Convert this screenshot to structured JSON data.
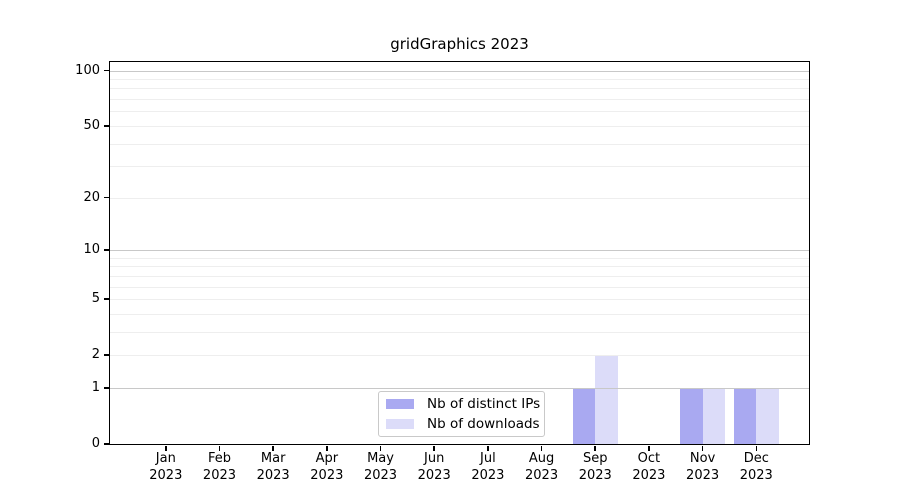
{
  "chart_data": {
    "type": "bar",
    "title": "gridGraphics 2023",
    "x": {
      "categories": [
        "Jan",
        "Feb",
        "Mar",
        "Apr",
        "May",
        "Jun",
        "Jul",
        "Aug",
        "Sep",
        "Oct",
        "Nov",
        "Dec"
      ],
      "year_line": "2023"
    },
    "series": [
      {
        "name": "Nb of distinct IPs",
        "color": "#a9a9f1",
        "values": [
          0,
          0,
          0,
          0,
          0,
          0,
          0,
          0,
          1,
          0,
          1,
          1
        ]
      },
      {
        "name": "Nb of downloads",
        "color": "#dcdcf9",
        "values": [
          0,
          0,
          0,
          0,
          0,
          0,
          0,
          0,
          2,
          0,
          1,
          1
        ]
      }
    ],
    "y": {
      "scale": "log1p",
      "tick_labels": [
        0,
        1,
        2,
        5,
        10,
        20,
        50,
        100
      ],
      "major_gridlines": [
        1,
        10,
        100
      ],
      "minor_gridlines": [
        2,
        3,
        4,
        5,
        6,
        7,
        8,
        9,
        20,
        30,
        40,
        50,
        60,
        70,
        80,
        90
      ],
      "ylim": [
        0,
        112
      ]
    },
    "legend": {
      "position": "inside-bottom-center"
    },
    "colors": {
      "major_grid": "#c8c8c8",
      "minor_grid": "#eeeeee",
      "axis": "#000000",
      "legend_border": "#c9c9c9",
      "background": "#ffffff"
    }
  }
}
